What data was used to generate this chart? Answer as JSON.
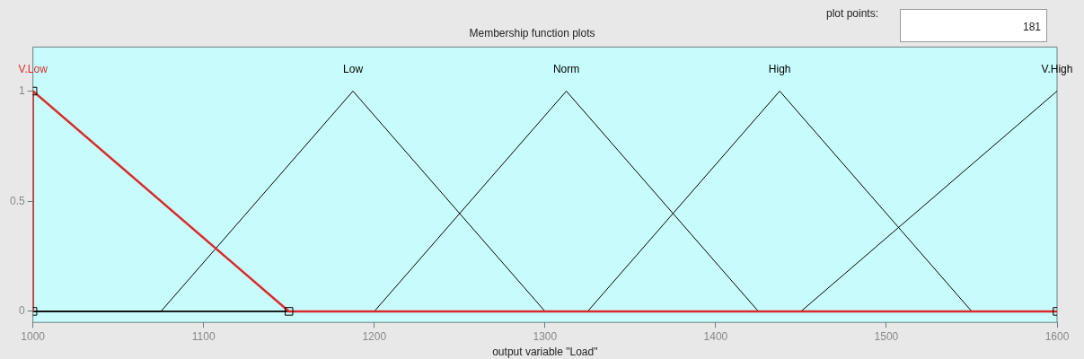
{
  "chart_data": {
    "type": "line",
    "title": "Membership function plots",
    "xlabel": "output variable \"Load\"",
    "series": [
      {
        "name": "V.Low",
        "color": "#d92b2b",
        "x": [
          1000,
          1000,
          1150,
          1600
        ],
        "values": [
          0,
          1,
          0,
          0
        ],
        "marker": "square"
      },
      {
        "name": "Low",
        "color": "#000000",
        "x": [
          1000,
          1075,
          1187.5,
          1300,
          1600
        ],
        "values": [
          0,
          0,
          1,
          0,
          0
        ]
      },
      {
        "name": "Norm",
        "color": "#000000",
        "x": [
          1000,
          1200,
          1312.5,
          1425,
          1600
        ],
        "values": [
          0,
          0,
          1,
          0,
          0
        ]
      },
      {
        "name": "High",
        "color": "#000000",
        "x": [
          1000,
          1325,
          1437.5,
          1550,
          1600
        ],
        "values": [
          0,
          0,
          1,
          0,
          0
        ]
      },
      {
        "name": "V.High",
        "color": "#000000",
        "x": [
          1000,
          1450,
          1600
        ],
        "values": [
          0,
          0,
          1
        ]
      }
    ],
    "xlim": [
      1000,
      1600
    ],
    "xticks": [
      1000,
      1100,
      1200,
      1300,
      1400,
      1500,
      1600
    ],
    "ylim": [
      -0.05,
      1.2
    ],
    "yticks": [
      0,
      0.5,
      1
    ],
    "grid": false,
    "legend": false,
    "line_style": "solid",
    "annotations": [
      "plot points:",
      "181"
    ]
  }
}
